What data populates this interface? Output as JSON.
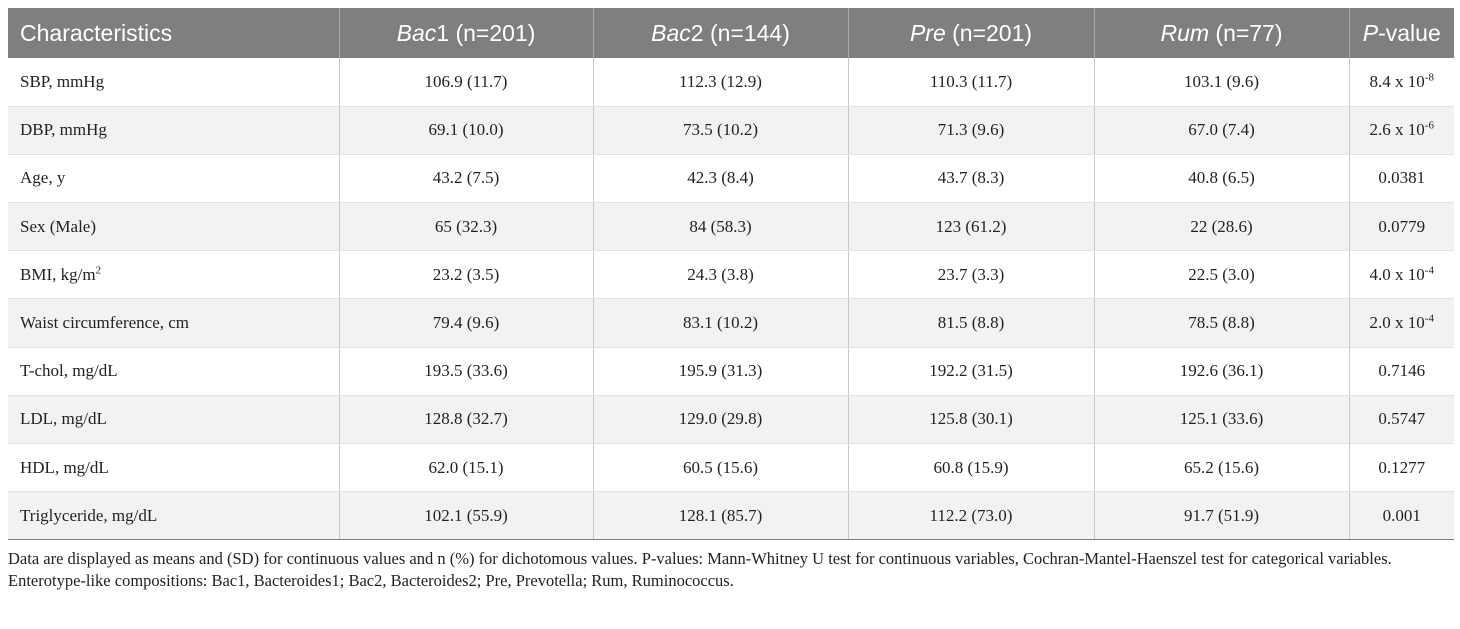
{
  "table": {
    "headers": [
      {
        "italic": "",
        "rest": "Characteristics"
      },
      {
        "italic": "Bac",
        "rest": "1 (n=201)"
      },
      {
        "italic": "Bac",
        "rest": "2 (n=144)"
      },
      {
        "italic": "Pre",
        "rest": " (n=201)"
      },
      {
        "italic": "Rum",
        "rest": " (n=77)"
      },
      {
        "italic": "P",
        "rest": "-value"
      }
    ],
    "rows": [
      {
        "label": "SBP, mmHg",
        "label_sup": "",
        "bac1": "106.9 (11.7)",
        "bac2": "112.3 (12.9)",
        "pre": "110.3 (11.7)",
        "rum": "103.1 (9.6)",
        "p": "8.4 x 10",
        "p_sup": "-8"
      },
      {
        "label": "DBP, mmHg",
        "label_sup": "",
        "bac1": "69.1 (10.0)",
        "bac2": "73.5 (10.2)",
        "pre": "71.3 (9.6)",
        "rum": "67.0 (7.4)",
        "p": "2.6 x 10",
        "p_sup": "-6"
      },
      {
        "label": "Age, y",
        "label_sup": "",
        "bac1": "43.2 (7.5)",
        "bac2": "42.3 (8.4)",
        "pre": "43.7 (8.3)",
        "rum": "40.8 (6.5)",
        "p": "0.0381",
        "p_sup": ""
      },
      {
        "label": "Sex (Male)",
        "label_sup": "",
        "bac1": "65 (32.3)",
        "bac2": "84 (58.3)",
        "pre": "123 (61.2)",
        "rum": "22 (28.6)",
        "p": "0.0779",
        "p_sup": ""
      },
      {
        "label": "BMI, kg/m",
        "label_sup": "2",
        "bac1": "23.2 (3.5)",
        "bac2": "24.3 (3.8)",
        "pre": "23.7 (3.3)",
        "rum": "22.5 (3.0)",
        "p": "4.0 x 10",
        "p_sup": "-4"
      },
      {
        "label": "Waist circumference, cm",
        "label_sup": "",
        "bac1": "79.4 (9.6)",
        "bac2": "83.1 (10.2)",
        "pre": "81.5 (8.8)",
        "rum": "78.5 (8.8)",
        "p": "2.0 x 10",
        "p_sup": "-4"
      },
      {
        "label": "T-chol, mg/dL",
        "label_sup": "",
        "bac1": "193.5 (33.6)",
        "bac2": "195.9 (31.3)",
        "pre": "192.2 (31.5)",
        "rum": "192.6 (36.1)",
        "p": "0.7146",
        "p_sup": ""
      },
      {
        "label": "LDL, mg/dL",
        "label_sup": "",
        "bac1": "128.8 (32.7)",
        "bac2": "129.0 (29.8)",
        "pre": "125.8 (30.1)",
        "rum": "125.1 (33.6)",
        "p": "0.5747",
        "p_sup": ""
      },
      {
        "label": "HDL, mg/dL",
        "label_sup": "",
        "bac1": "62.0 (15.1)",
        "bac2": "60.5 (15.6)",
        "pre": "60.8 (15.9)",
        "rum": "65.2 (15.6)",
        "p": "0.1277",
        "p_sup": ""
      },
      {
        "label": "Triglyceride, mg/dL",
        "label_sup": "",
        "bac1": "102.1 (55.9)",
        "bac2": "128.1 (85.7)",
        "pre": "112.2 (73.0)",
        "rum": "91.7 (51.9)",
        "p": "0.001",
        "p_sup": ""
      }
    ]
  },
  "notes": {
    "note1": "Data are displayed as means and (SD) for continuous values and n (%) for dichotomous values. P-values: Mann-Whitney U test for continuous variables, Cochran-Mantel-Haenszel test for categorical variables.",
    "note2": "Enterotype-like compositions: Bac1, Bacteroides1; Bac2, Bacteroides2; Pre, Prevotella; Rum, Ruminococcus."
  },
  "colors": {
    "header_bg": "#7f7f7f",
    "header_text": "#ffffff",
    "stripe_bg": "#f2f2f2"
  }
}
